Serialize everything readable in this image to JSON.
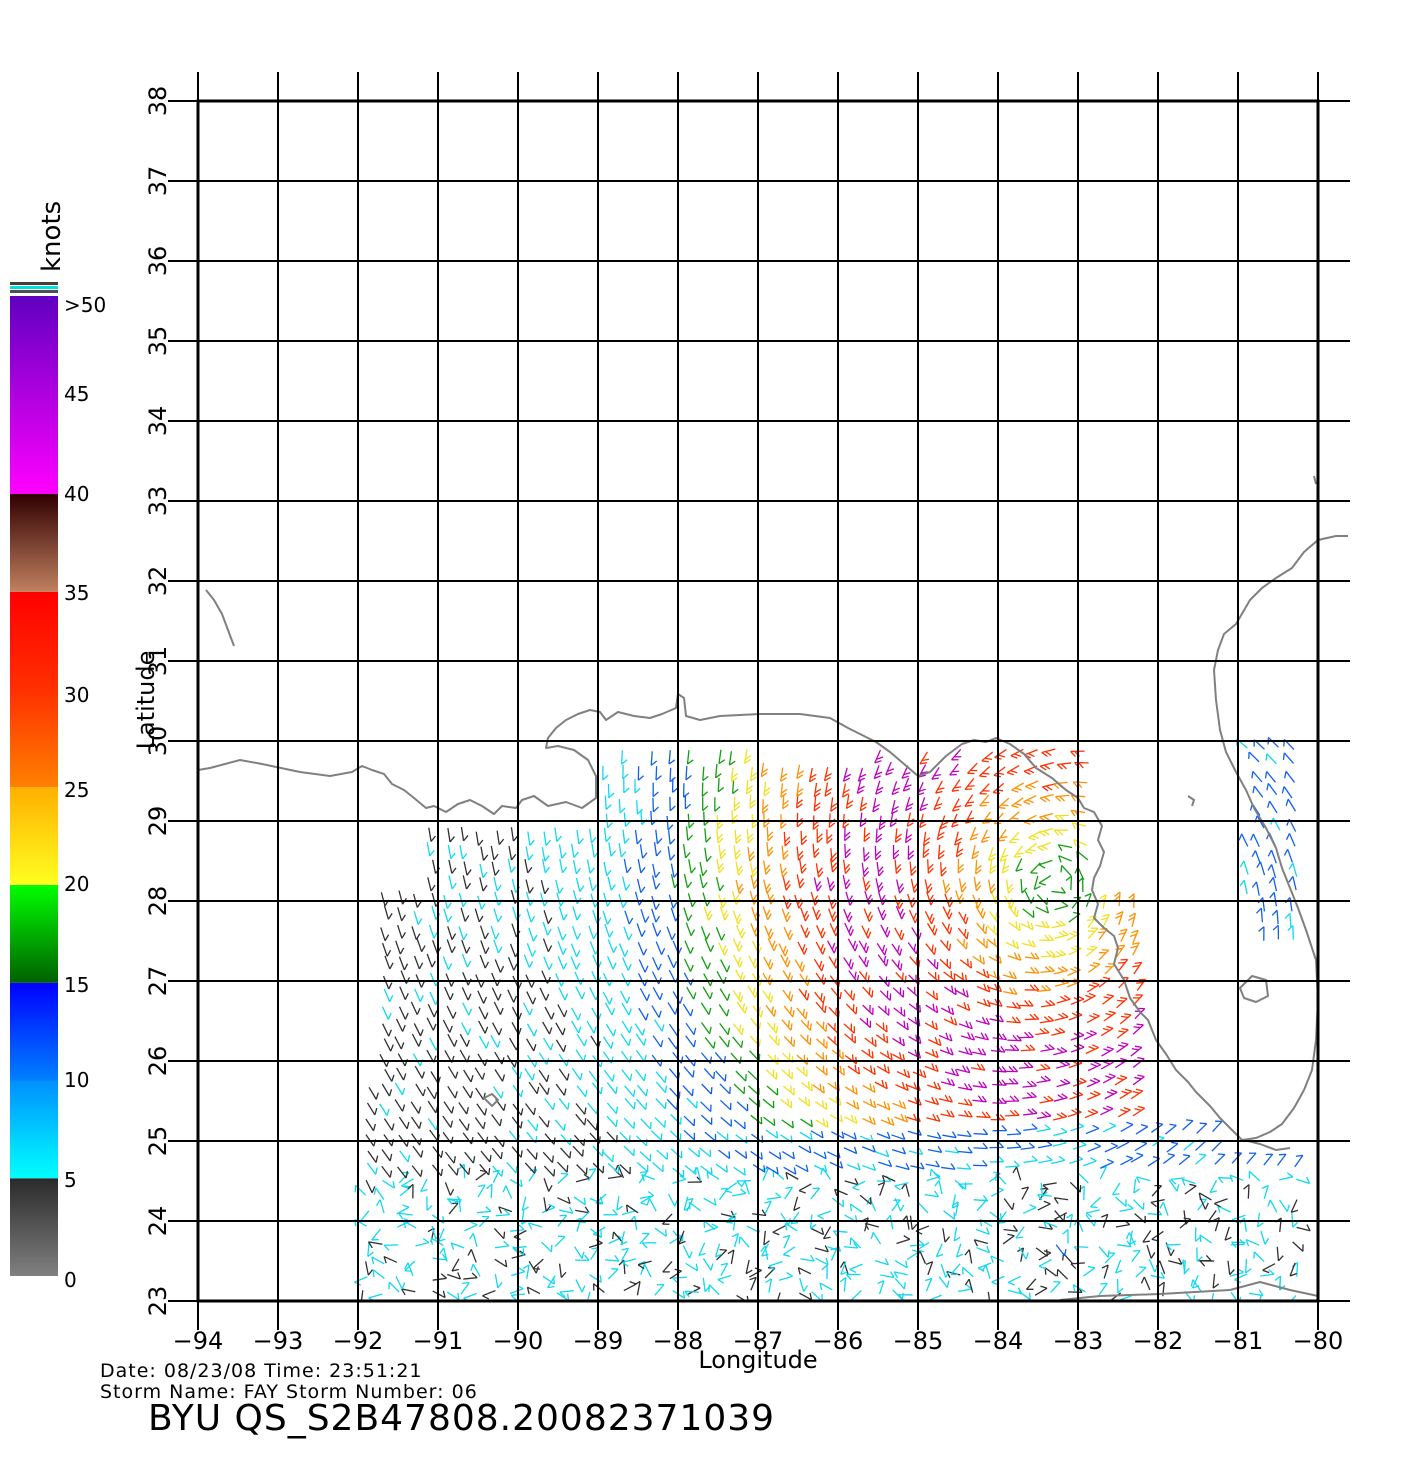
{
  "colorbar": {
    "unit_label": "knots",
    "ticks": [
      "0",
      "5",
      "10",
      "15",
      "20",
      "25",
      "30",
      "35",
      "40",
      "45",
      ">50"
    ],
    "segments": [
      {
        "from": 0,
        "to": 5,
        "colors": [
          "#808080",
          "#2a2a2a"
        ]
      },
      {
        "from": 5,
        "to": 10,
        "colors": [
          "#00ffff",
          "#0090ff"
        ]
      },
      {
        "from": 10,
        "to": 15,
        "colors": [
          "#0080ff",
          "#0000ff"
        ]
      },
      {
        "from": 15,
        "to": 20,
        "colors": [
          "#006000",
          "#00ff00"
        ]
      },
      {
        "from": 20,
        "to": 25,
        "colors": [
          "#ffff20",
          "#ffb000"
        ]
      },
      {
        "from": 25,
        "to": 30,
        "colors": [
          "#ff8000",
          "#ff3000"
        ]
      },
      {
        "from": 30,
        "to": 35,
        "colors": [
          "#ff3000",
          "#ff0000"
        ]
      },
      {
        "from": 35,
        "to": 40,
        "colors": [
          "#c08060",
          "#300000"
        ]
      },
      {
        "from": 40,
        "to": 50,
        "colors": [
          "#ff00ff",
          "#6000c0"
        ]
      }
    ]
  },
  "axes": {
    "x_label": "Longitude",
    "y_label": "Latitude",
    "lon_range": [
      -94,
      -80
    ],
    "lat_range": [
      23,
      38
    ],
    "lon_ticks": [
      "−94",
      "−93",
      "−92",
      "−91",
      "−90",
      "−89",
      "−88",
      "−87",
      "−86",
      "−85",
      "−84",
      "−83",
      "−82",
      "−81",
      "−80"
    ],
    "lat_ticks": [
      "23",
      "24",
      "25",
      "26",
      "27",
      "28",
      "29",
      "30",
      "31",
      "32",
      "33",
      "34",
      "35",
      "36",
      "37",
      "38"
    ],
    "grid": true
  },
  "map": {
    "coast_color": "#808080",
    "grid_color": "#000000",
    "storm_center": {
      "lon": -83.3,
      "lat": 28.2
    }
  },
  "info": {
    "date_line": "Date: 08/23/08   Time: 23:51:21",
    "storm_line": "Storm  Name: FAY   Storm  Number: 06",
    "identifier": "BYU  QS_S2B47808.20082371039"
  }
}
